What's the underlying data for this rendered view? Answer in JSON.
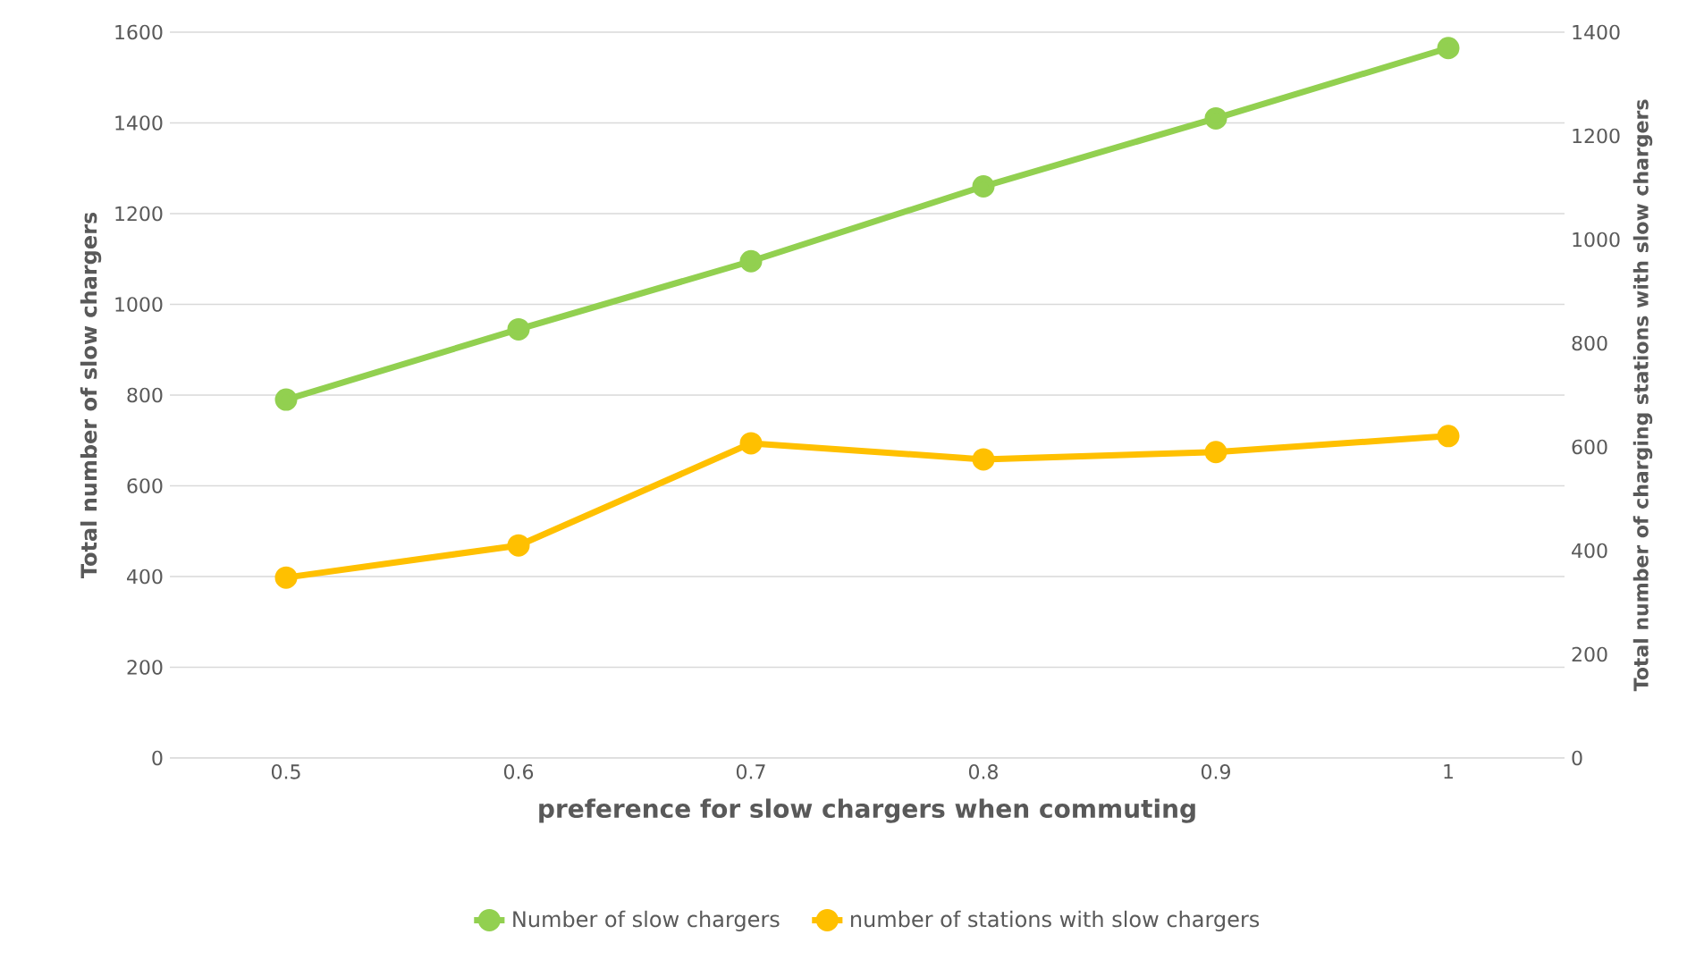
{
  "chart_data": {
    "type": "line",
    "xlabel": "preference for slow chargers when commuting",
    "ylabel": "Total number of slow chargers",
    "y2label": "Total number of charging stations with slow chargers",
    "categories": [
      "0.5",
      "0.6",
      "0.7",
      "0.8",
      "0.9",
      "1"
    ],
    "series": [
      {
        "name": "Number of slow chargers",
        "color": "#92d050",
        "values": [
          790,
          945,
          1095,
          1260,
          1410,
          1565
        ]
      },
      {
        "name": "number of stations with slow chargers",
        "color": "#ffc000",
        "axis": "y2",
        "values": [
          348,
          410,
          607,
          576,
          590,
          621
        ]
      }
    ],
    "ylim": [
      0,
      1600
    ],
    "yticks": [
      0,
      200,
      400,
      600,
      800,
      1000,
      1200,
      1400,
      1600
    ],
    "y2lim": [
      0,
      1400
    ],
    "y2ticks": [
      0,
      200,
      400,
      600,
      800,
      1000,
      1200,
      1400
    ],
    "grid": "y",
    "legend": "bottom",
    "marker": "circle",
    "line_style": "solid"
  }
}
